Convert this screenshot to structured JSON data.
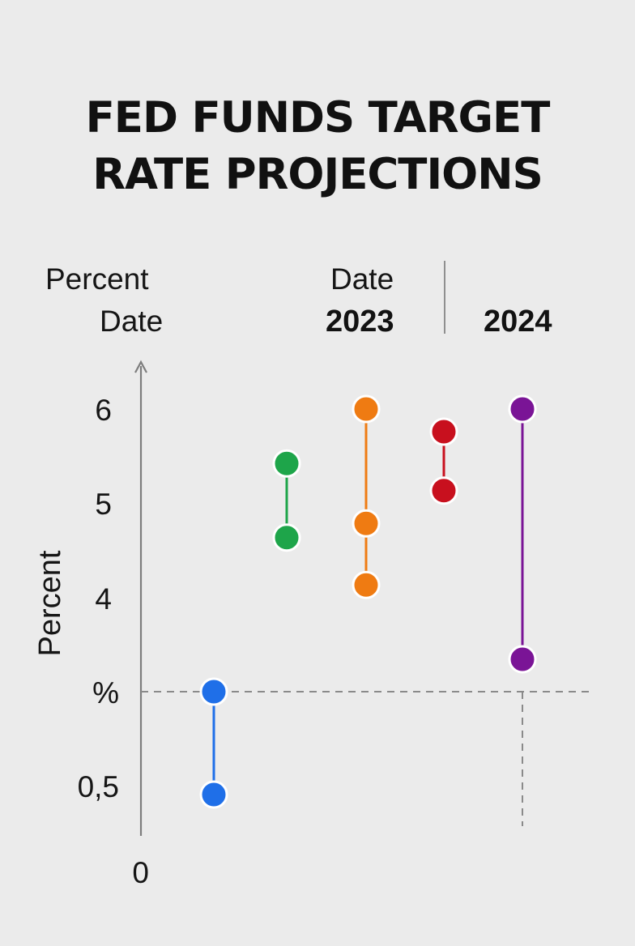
{
  "chart_data": {
    "type": "dot-range",
    "title_lines": [
      "FED FUNDS TARGET",
      "RATE PROJECTIONS"
    ],
    "header_labels": {
      "left_top": "Percent",
      "left_bottom": "Date",
      "center_top": "Date"
    },
    "years": [
      "2023",
      "2024"
    ],
    "ylabel": "Percent",
    "y_tick_labels": [
      "6",
      "5",
      "4",
      "%",
      "0,5",
      "0"
    ],
    "series": [
      {
        "name": "blue",
        "color": "#1f6fe8",
        "low": 0.5,
        "high": 3.1
      },
      {
        "name": "green",
        "color": "#1ea54a",
        "low": 4.6,
        "high": 5.4
      },
      {
        "name": "orange",
        "color": "#ef7b12",
        "low": 4.1,
        "high": 6.0,
        "mid": 4.75
      },
      {
        "name": "red",
        "color": "#c8101e",
        "low": 5.1,
        "high": 5.75
      },
      {
        "name": "purple",
        "color": "#7a1496",
        "low": 3.4,
        "high": 6.0
      }
    ],
    "reference_level": 3.1,
    "ylim": [
      0,
      6.5
    ]
  }
}
